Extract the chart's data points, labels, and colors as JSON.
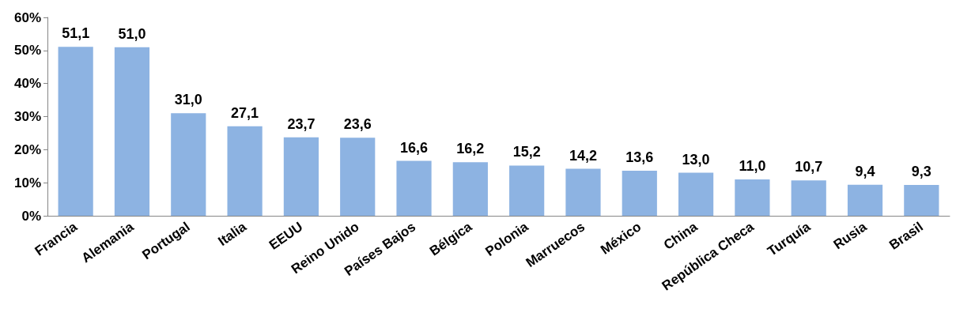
{
  "chart_data": {
    "type": "bar",
    "categories": [
      "Francia",
      "Alemania",
      "Portugal",
      "Italia",
      "EEUU",
      "Reino Unido",
      "Países Bajos",
      "Bélgica",
      "Polonia",
      "Marruecos",
      "México",
      "China",
      "República Checa",
      "Turquía",
      "Rusia",
      "Brasil"
    ],
    "values": [
      51.1,
      51.0,
      31.0,
      27.1,
      23.7,
      23.6,
      16.6,
      16.2,
      15.2,
      14.2,
      13.6,
      13.0,
      11.0,
      10.7,
      9.4,
      9.3
    ],
    "value_labels": [
      "51,1",
      "51,0",
      "31,0",
      "27,1",
      "23,7",
      "23,6",
      "16,6",
      "16,2",
      "15,2",
      "14,2",
      "13,6",
      "13,0",
      "11,0",
      "10,7",
      "9,4",
      "9,3"
    ],
    "color": "#8db3e2",
    "ylim": [
      0,
      60
    ],
    "yticks": [
      {
        "value": 0,
        "label": "0%"
      },
      {
        "value": 10,
        "label": "10%"
      },
      {
        "value": 20,
        "label": "20%"
      },
      {
        "value": 30,
        "label": "30%"
      },
      {
        "value": 40,
        "label": "40%"
      },
      {
        "value": 50,
        "label": "50%"
      },
      {
        "value": 60,
        "label": "60%"
      }
    ],
    "grid": false
  }
}
